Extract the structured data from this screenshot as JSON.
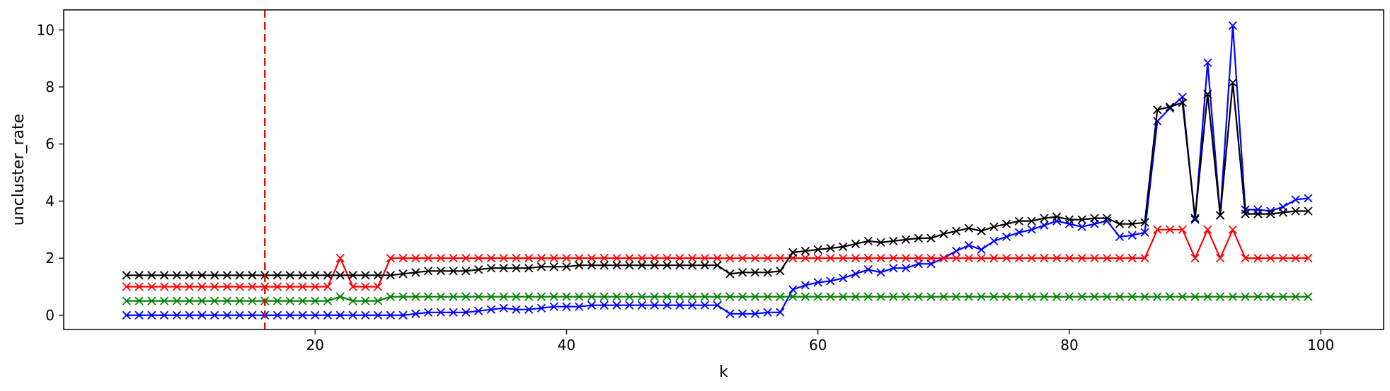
{
  "chart_data": {
    "type": "line",
    "title": "",
    "xlabel": "k",
    "ylabel": "uncluster_rate",
    "xlim": [
      0,
      105
    ],
    "ylim": [
      -0.5,
      10.7
    ],
    "xticks": [
      20,
      40,
      60,
      80,
      100
    ],
    "yticks": [
      0,
      2,
      4,
      6,
      8,
      10
    ],
    "grid": false,
    "marker": "x",
    "vline": {
      "x": 16,
      "color": "#ff0000",
      "style": "dashed"
    },
    "x": [
      5,
      6,
      7,
      8,
      9,
      10,
      11,
      12,
      13,
      14,
      15,
      16,
      17,
      18,
      19,
      20,
      21,
      22,
      23,
      24,
      25,
      26,
      27,
      28,
      29,
      30,
      31,
      32,
      33,
      34,
      35,
      36,
      37,
      38,
      39,
      40,
      41,
      42,
      43,
      44,
      45,
      46,
      47,
      48,
      49,
      50,
      51,
      52,
      53,
      54,
      55,
      56,
      57,
      58,
      59,
      60,
      61,
      62,
      63,
      64,
      65,
      66,
      67,
      68,
      69,
      70,
      71,
      72,
      73,
      74,
      75,
      76,
      77,
      78,
      79,
      80,
      81,
      82,
      83,
      84,
      85,
      86,
      87,
      88,
      89,
      90,
      91,
      92,
      93,
      94,
      95,
      96,
      97,
      98,
      99
    ],
    "series": [
      {
        "color": "#0000ff",
        "values": [
          0,
          0,
          0,
          0,
          0,
          0,
          0,
          0,
          0,
          0,
          0,
          0,
          0,
          0,
          0,
          0,
          0,
          0,
          0,
          0,
          0,
          0,
          0,
          0.05,
          0.1,
          0.1,
          0.1,
          0.1,
          0.15,
          0.2,
          0.25,
          0.2,
          0.2,
          0.25,
          0.3,
          0.3,
          0.3,
          0.35,
          0.35,
          0.35,
          0.35,
          0.35,
          0.35,
          0.35,
          0.35,
          0.35,
          0.35,
          0.35,
          0.05,
          0.05,
          0.05,
          0.1,
          0.1,
          0.9,
          1.05,
          1.15,
          1.2,
          1.3,
          1.45,
          1.6,
          1.5,
          1.65,
          1.65,
          1.8,
          1.8,
          2.0,
          2.25,
          2.45,
          2.3,
          2.6,
          2.75,
          2.9,
          3.0,
          3.15,
          3.3,
          3.2,
          3.1,
          3.2,
          3.3,
          2.75,
          2.8,
          2.9,
          6.8,
          7.25,
          7.65,
          3.35,
          8.85,
          3.5,
          10.15,
          3.7,
          3.7,
          3.65,
          3.8,
          4.05,
          4.1
        ]
      },
      {
        "color": "#ff0000",
        "values": [
          1,
          1,
          1,
          1,
          1,
          1,
          1,
          1,
          1,
          1,
          1,
          1,
          1,
          1,
          1,
          1,
          1,
          2,
          1,
          1,
          1,
          2,
          2,
          2,
          2,
          2,
          2,
          2,
          2,
          2,
          2,
          2,
          2,
          2,
          2,
          2,
          2,
          2,
          2,
          2,
          2,
          2,
          2,
          2,
          2,
          2,
          2,
          2,
          2,
          2,
          2,
          2,
          2,
          2,
          2,
          2,
          2,
          2,
          2,
          2,
          2,
          2,
          2,
          2,
          2,
          2,
          2,
          2,
          2,
          2,
          2,
          2,
          2,
          2,
          2,
          2,
          2,
          2,
          2,
          2,
          2,
          2,
          3,
          3,
          3,
          2,
          3,
          2,
          3,
          2,
          2,
          2,
          2,
          2,
          2
        ]
      },
      {
        "color": "#008000",
        "values": [
          0.5,
          0.5,
          0.5,
          0.5,
          0.5,
          0.5,
          0.5,
          0.5,
          0.5,
          0.5,
          0.5,
          0.5,
          0.5,
          0.5,
          0.5,
          0.5,
          0.5,
          0.65,
          0.5,
          0.5,
          0.5,
          0.65,
          0.65,
          0.65,
          0.65,
          0.65,
          0.65,
          0.65,
          0.65,
          0.65,
          0.65,
          0.65,
          0.65,
          0.65,
          0.65,
          0.65,
          0.65,
          0.65,
          0.65,
          0.65,
          0.65,
          0.65,
          0.65,
          0.65,
          0.65,
          0.65,
          0.65,
          0.65,
          0.65,
          0.65,
          0.65,
          0.65,
          0.65,
          0.65,
          0.65,
          0.65,
          0.65,
          0.65,
          0.65,
          0.65,
          0.65,
          0.65,
          0.65,
          0.65,
          0.65,
          0.65,
          0.65,
          0.65,
          0.65,
          0.65,
          0.65,
          0.65,
          0.65,
          0.65,
          0.65,
          0.65,
          0.65,
          0.65,
          0.65,
          0.65,
          0.65,
          0.65,
          0.65,
          0.65,
          0.65,
          0.65,
          0.65,
          0.65,
          0.65,
          0.65,
          0.65,
          0.65,
          0.65,
          0.65,
          0.65
        ]
      },
      {
        "color": "#000000",
        "values": [
          1.4,
          1.4,
          1.4,
          1.4,
          1.4,
          1.4,
          1.4,
          1.4,
          1.4,
          1.4,
          1.4,
          1.4,
          1.4,
          1.4,
          1.4,
          1.4,
          1.4,
          1.4,
          1.4,
          1.4,
          1.4,
          1.4,
          1.45,
          1.5,
          1.55,
          1.55,
          1.55,
          1.55,
          1.6,
          1.65,
          1.65,
          1.65,
          1.65,
          1.7,
          1.7,
          1.7,
          1.75,
          1.75,
          1.75,
          1.75,
          1.75,
          1.75,
          1.75,
          1.75,
          1.75,
          1.75,
          1.75,
          1.75,
          1.45,
          1.5,
          1.5,
          1.5,
          1.55,
          2.2,
          2.25,
          2.3,
          2.35,
          2.4,
          2.5,
          2.6,
          2.55,
          2.6,
          2.65,
          2.7,
          2.7,
          2.85,
          2.95,
          3.05,
          2.95,
          3.1,
          3.2,
          3.3,
          3.3,
          3.4,
          3.45,
          3.35,
          3.35,
          3.4,
          3.4,
          3.2,
          3.2,
          3.25,
          7.2,
          7.3,
          7.45,
          3.4,
          7.75,
          3.5,
          8.15,
          3.55,
          3.55,
          3.55,
          3.6,
          3.65,
          3.65
        ]
      }
    ]
  }
}
